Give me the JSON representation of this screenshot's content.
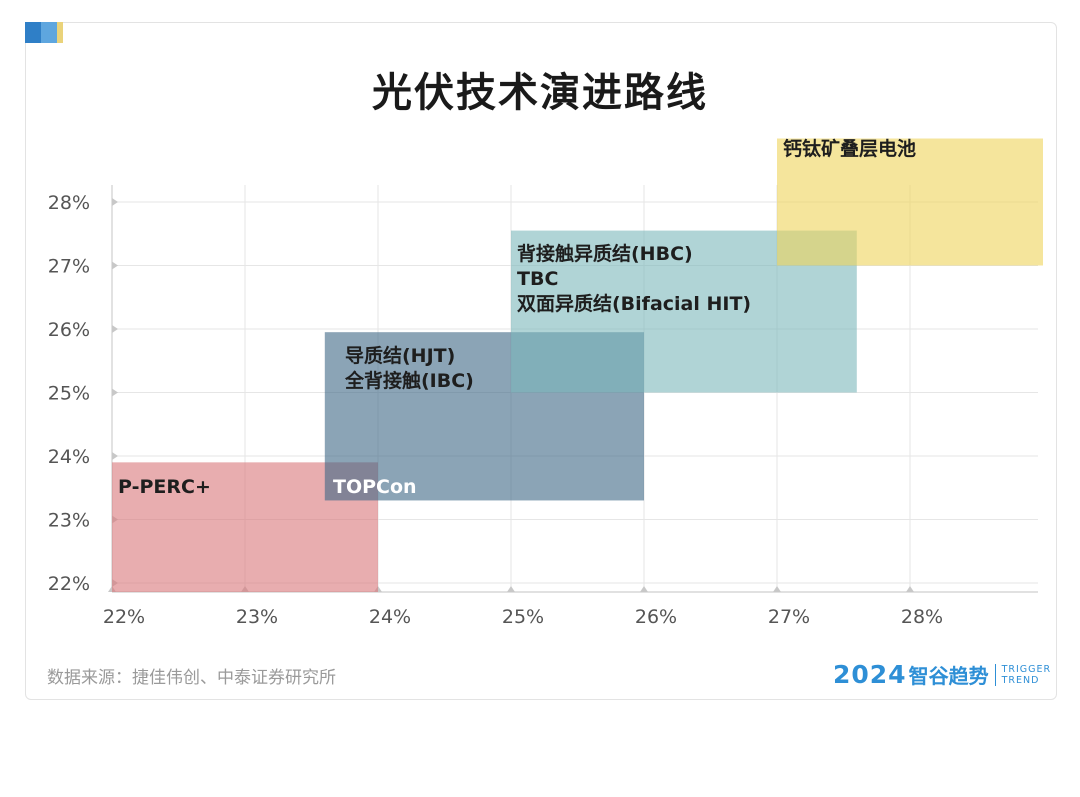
{
  "header": {
    "title": "光伏技术演进路线",
    "accent_colors": [
      "#2f7fc7",
      "#5ea6df",
      "#ead37a"
    ]
  },
  "chart_data": {
    "type": "range-block",
    "title": "光伏技术演进路线",
    "xlabel": "",
    "ylabel": "",
    "x_ticks": [
      "22%",
      "23%",
      "24%",
      "25%",
      "26%",
      "27%",
      "28%"
    ],
    "y_ticks": [
      "22%",
      "23%",
      "24%",
      "25%",
      "26%",
      "27%",
      "28%"
    ],
    "xlim": [
      22,
      29
    ],
    "ylim": [
      21.85,
      29.0
    ],
    "grid": true,
    "blocks": [
      {
        "labels": [
          "P-PERC+"
        ],
        "x_range": [
          22.0,
          24.0
        ],
        "y_range": [
          21.85,
          23.9
        ],
        "color": "#d8777a"
      },
      {
        "labels": [
          "TOPCon"
        ],
        "x_range": [
          23.6,
          26.0
        ],
        "y_range": [
          23.3,
          25.95
        ],
        "color": "#3d6785"
      },
      {
        "labels": [
          "导质结(HJT)",
          "全背接触(IBC)"
        ],
        "x_range": [
          23.6,
          26.0
        ],
        "y_range": [
          23.3,
          25.95
        ],
        "color": "#3d6785"
      },
      {
        "labels": [
          "背接触异质结(HBC)",
          "TBC",
          "双面异质结(Bifacial HIT)"
        ],
        "x_range": [
          25.0,
          27.6
        ],
        "y_range": [
          25.0,
          27.55
        ],
        "color": "#7bb7ba"
      },
      {
        "labels": [
          "钙钛矿叠层电池"
        ],
        "x_range": [
          27.0,
          29.0
        ],
        "y_range": [
          27.0,
          29.0
        ],
        "color": "#efd35a"
      }
    ]
  },
  "footer": {
    "source": "数据来源：捷佳伟创、中泰证券研究所",
    "brand_year": "2024",
    "brand_name": "智谷趋势",
    "brand_en_line1": "TRIGGER",
    "brand_en_line2": "TREND"
  }
}
